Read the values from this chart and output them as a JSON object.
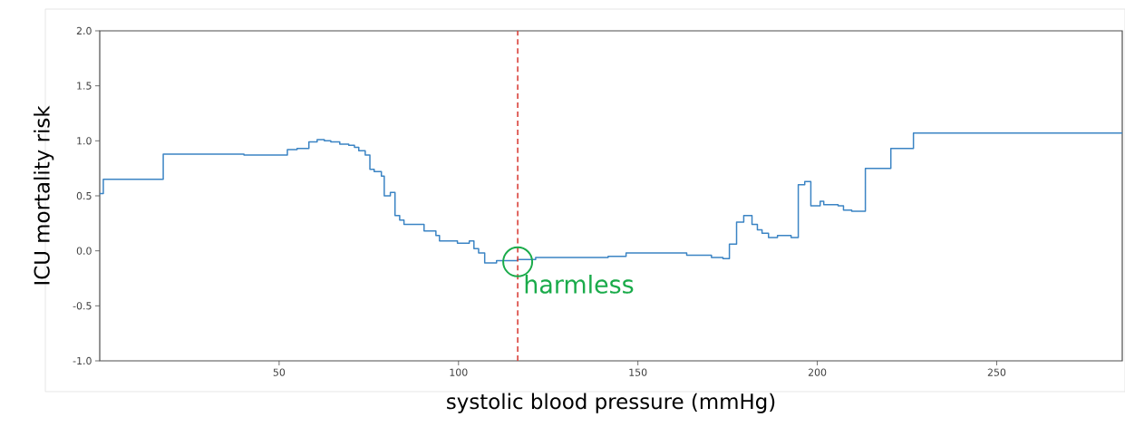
{
  "chart_data": {
    "type": "step",
    "xlabel": "systolic blood pressure (mmHg)",
    "ylabel": "ICU mortality risk",
    "x": [
      0,
      1,
      17.7,
      40.2,
      52.3,
      55,
      58.3,
      60.6,
      62.6,
      64.4,
      66.9,
      69.4,
      71,
      72.2,
      74,
      75.3,
      76.5,
      78.5,
      79.3,
      81,
      82.3,
      83.6,
      84.8,
      86.1,
      90.4,
      93.7,
      94.7,
      99.7,
      103,
      104.3,
      105.6,
      107.3,
      110.6,
      116.4,
      121.5,
      133.3,
      141.7,
      146.7,
      158.6,
      163.6,
      170.5,
      173.7,
      175.5,
      177.5,
      179.5,
      181.8,
      183.3,
      184.6,
      186.4,
      188.9,
      192.7,
      194.7,
      196.5,
      198.2,
      200.8,
      201.8,
      205.8,
      207.3,
      209.6,
      213.4,
      220.5,
      226.8,
      285
    ],
    "series": [
      {
        "color": "#3b84c4",
        "values": [
          0.52,
          0.65,
          0.88,
          0.87,
          0.92,
          0.93,
          0.99,
          1.01,
          1.0,
          0.99,
          0.97,
          0.96,
          0.94,
          0.91,
          0.87,
          0.74,
          0.72,
          0.68,
          0.5,
          0.53,
          0.32,
          0.28,
          0.24,
          0.24,
          0.18,
          0.14,
          0.09,
          0.07,
          0.09,
          0.02,
          -0.02,
          -0.11,
          -0.09,
          -0.08,
          -0.06,
          -0.06,
          -0.05,
          -0.02,
          -0.02,
          -0.04,
          -0.06,
          -0.07,
          0.06,
          0.26,
          0.32,
          0.24,
          0.19,
          0.16,
          0.12,
          0.14,
          0.12,
          0.6,
          0.63,
          0.41,
          0.45,
          0.42,
          0.41,
          0.37,
          0.36,
          0.75,
          0.93,
          1.07,
          1.07
        ]
      }
    ],
    "xlim": [
      0,
      285
    ],
    "ylim": [
      -1.0,
      2.0
    ],
    "xticks": [
      50,
      100,
      150,
      200,
      250
    ],
    "yticks": [
      {
        "value": -1.0,
        "label": "-1.0"
      },
      {
        "value": -0.5,
        "label": "-0.5"
      },
      {
        "value": 0,
        "label": "0.0"
      },
      {
        "value": 0.5,
        "label": "0.5"
      },
      {
        "value": 1.0,
        "label": "1.0"
      },
      {
        "value": 1.5,
        "label": "1.5"
      },
      {
        "value": 2.0,
        "label": "2.0"
      }
    ],
    "ref_lines": [
      {
        "axis": "x",
        "value": 116.5,
        "color": "#d9413a",
        "line_style": "dashed"
      }
    ],
    "annotations": [
      {
        "text": "harmless",
        "x": 116.5,
        "y": -0.1
      }
    ],
    "grid": false
  }
}
